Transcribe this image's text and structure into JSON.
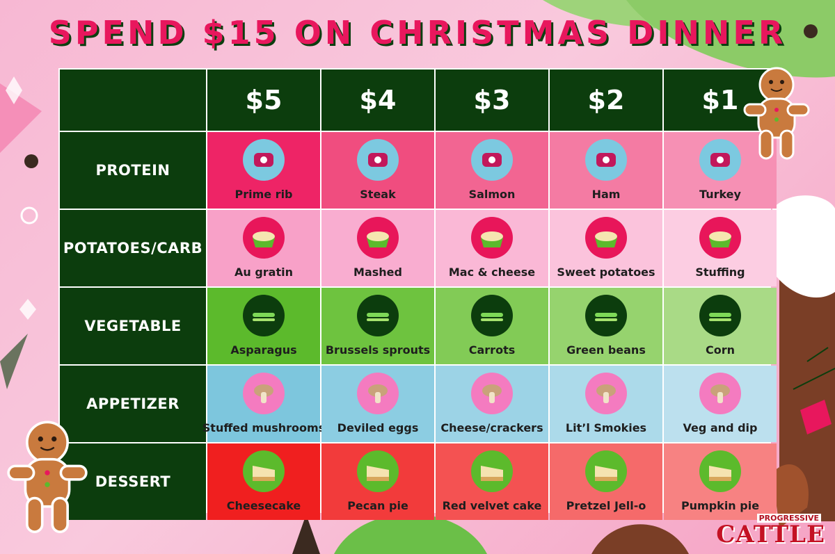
{
  "title": "SPEND $15 ON CHRISTMAS DINNER",
  "prices": [
    "$5",
    "$4",
    "$3",
    "$2",
    "$1"
  ],
  "rows": [
    {
      "category": "PROTEIN",
      "items": [
        "Prime rib",
        "Steak",
        "Salmon",
        "Ham",
        "Turkey"
      ]
    },
    {
      "category": "POTATOES/CARB",
      "items": [
        "Au gratin",
        "Mashed",
        "Mac & cheese",
        "Sweet potatoes",
        "Stuffing"
      ]
    },
    {
      "category": "VEGETABLE",
      "items": [
        "Asparagus",
        "Brussels sprouts",
        "Carrots",
        "Green beans",
        "Corn"
      ]
    },
    {
      "category": "APPETIZER",
      "items": [
        "Stuffed mushrooms",
        "Deviled eggs",
        "Cheese/crackers",
        "Lit’l Smokies",
        "Veg and dip"
      ]
    },
    {
      "category": "DESSERT",
      "items": [
        "Cheesecake",
        "Pecan pie",
        "Red velvet cake",
        "Pretzel Jell-o",
        "Pumpkin pie"
      ]
    }
  ],
  "row_colors": [
    [
      "#ee2466",
      "#f04d7f",
      "#f26592",
      "#f47ba3",
      "#f690b4"
    ],
    [
      "#f8a1c8",
      "#f9add0",
      "#fab8d6",
      "#fbc3dc",
      "#fccde2"
    ],
    [
      "#5cba2c",
      "#6ec33f",
      "#82cb56",
      "#96d36e",
      "#a9da86"
    ],
    [
      "#7dc6dd",
      "#8ccde2",
      "#9cd3e6",
      "#acdaea",
      "#bce0ee"
    ],
    [
      "#f01f1f",
      "#f23b3b",
      "#f45252",
      "#f56a6a",
      "#f78282"
    ]
  ],
  "icon_circle_colors": [
    "#7cc9e0",
    "#e8165a",
    "#0c3d0d",
    "#f47bc0",
    "#5cba2c"
  ],
  "logo": {
    "top": "PROGRESSIVE",
    "main": "CATTLE"
  }
}
